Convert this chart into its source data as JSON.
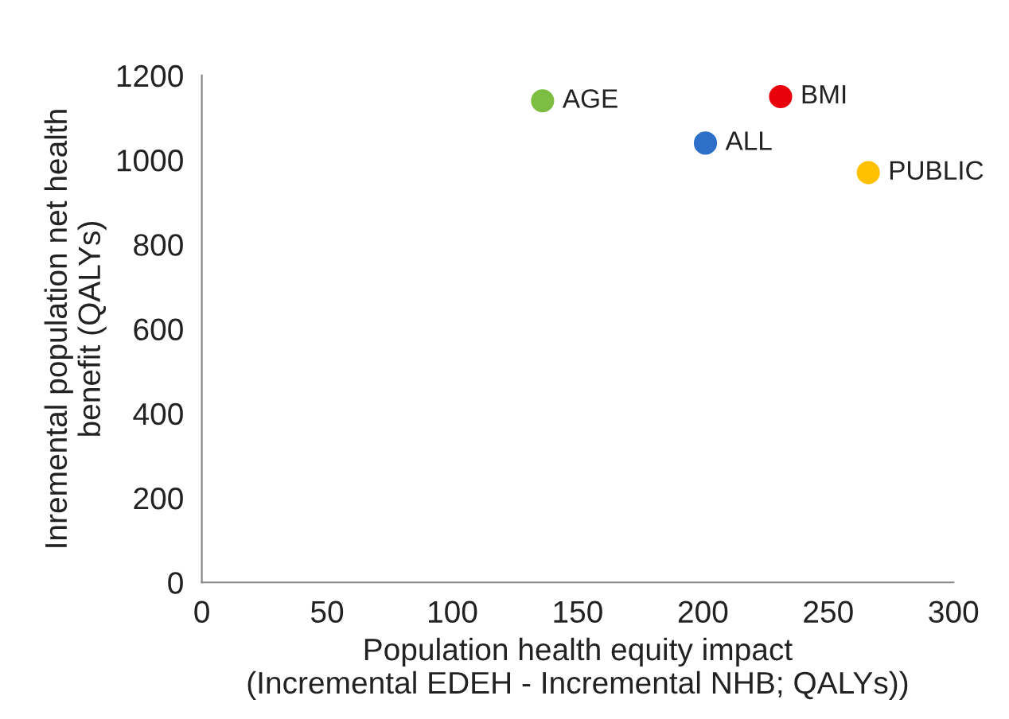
{
  "chart_data": {
    "type": "scatter",
    "xlabel": "Population health equity impact\n(Incremental EDEH - Incremental NHB; QALYs))",
    "ylabel": "Inremental population net health\nbenefit (QALYs)",
    "series": [
      {
        "name": "AGE",
        "color": "#7cbd42",
        "x": [
          136
        ],
        "values": [
          1140
        ]
      },
      {
        "name": "BMI",
        "color": "#e8000b",
        "x": [
          231
        ],
        "values": [
          1150
        ]
      },
      {
        "name": "ALL",
        "color": "#2e6fc9",
        "x": [
          201
        ],
        "values": [
          1040
        ]
      },
      {
        "name": "PUBLIC",
        "color": "#ffc000",
        "x": [
          266
        ],
        "values": [
          970
        ]
      }
    ],
    "xlim": [
      0,
      300
    ],
    "xticks": [
      0,
      50,
      100,
      150,
      200,
      250,
      300
    ],
    "ylim": [
      0,
      1200
    ],
    "yticks": [
      0,
      200,
      400,
      600,
      800,
      1000,
      1200
    ],
    "marker": "circle",
    "grid": false,
    "legend": false
  }
}
